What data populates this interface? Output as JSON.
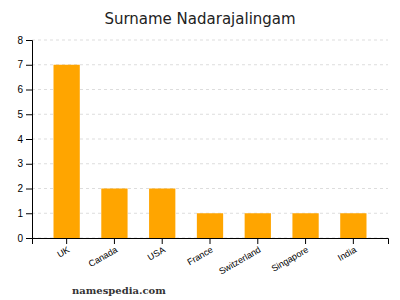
{
  "chart_data": {
    "type": "bar",
    "title": "Surname Nadarajalingam",
    "categories": [
      "UK",
      "Canada",
      "USA",
      "France",
      "Switzerland",
      "Singapore",
      "India"
    ],
    "values": [
      7,
      2,
      2,
      1,
      1,
      1,
      1
    ],
    "color": "#FFA500",
    "ylim": [
      0,
      8
    ],
    "yticks": [
      0,
      1,
      2,
      3,
      4,
      5,
      6,
      7,
      8
    ],
    "grid": true,
    "annotations": [
      "namespedia.com"
    ]
  }
}
